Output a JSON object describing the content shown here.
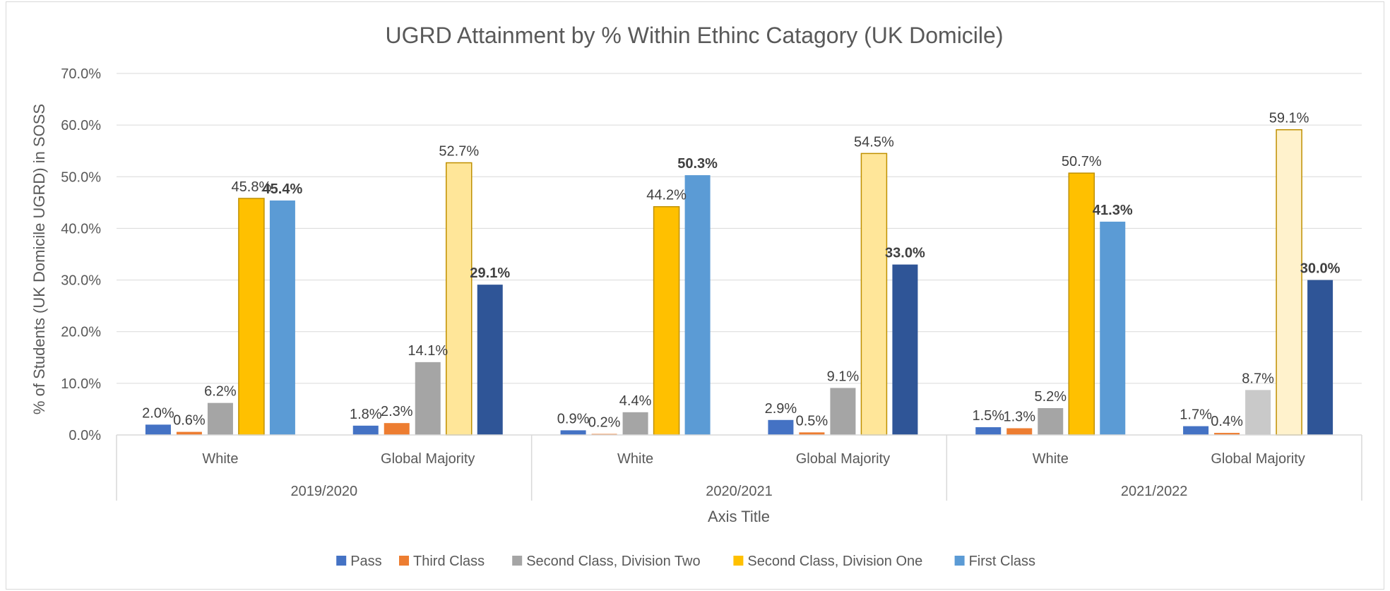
{
  "chart_data": {
    "type": "bar",
    "title": "UGRD Attainment by % Within Ethinc Catagory (UK Domicile)",
    "ylabel": "% of Students (UK Domicile UGRD) in SOSS",
    "xlabel": "Axis Title",
    "ylim": [
      0,
      70
    ],
    "yticks": [
      0,
      10,
      20,
      30,
      40,
      50,
      60,
      70
    ],
    "ytick_format": "0.0%",
    "grid": true,
    "legend_position": "bottom",
    "groups": [
      {
        "label": "2019/2020",
        "categories": [
          "White",
          "Global Majority"
        ]
      },
      {
        "label": "2020/2021",
        "categories": [
          "White",
          "Global Majority"
        ]
      },
      {
        "label": "2021/2022",
        "categories": [
          "White",
          "Global Majority"
        ]
      }
    ],
    "series": [
      {
        "name": "Pass",
        "color": "#4472C4",
        "values": [
          2.0,
          1.8,
          0.9,
          2.9,
          1.5,
          1.7
        ]
      },
      {
        "name": "Third Class",
        "color": "#ED7D31",
        "values": [
          0.6,
          2.3,
          0.2,
          0.5,
          1.3,
          0.4
        ]
      },
      {
        "name": "Second Class, Division Two",
        "color": "#A5A5A5",
        "values": [
          6.2,
          14.1,
          4.4,
          9.1,
          5.2,
          8.7
        ]
      },
      {
        "name": "Second Class, Division One",
        "color": "#FFC000",
        "values": [
          45.8,
          52.7,
          44.2,
          54.5,
          50.7,
          59.1
        ]
      },
      {
        "name": "First Class",
        "color": "#5B9BD5",
        "values": [
          45.4,
          29.1,
          50.3,
          33.0,
          41.3,
          30.0
        ]
      }
    ],
    "point_colors": {
      "Second Class, Division Two": [
        "#A5A5A5",
        "#A5A5A5",
        "#A5A5A5",
        "#A5A5A5",
        "#A5A5A5",
        "#C9C9C9"
      ],
      "Second Class, Division One": [
        "#FFC000",
        "#FFE699",
        "#FFC000",
        "#FFE699",
        "#FFC000",
        "#FFF2CC"
      ],
      "First Class": [
        "#5B9BD5",
        "#2F5597",
        "#5B9BD5",
        "#2F5597",
        "#5B9BD5",
        "#2F5597"
      ]
    },
    "bold_labels": {
      "First Class": [
        true,
        true,
        true,
        true,
        true,
        true
      ]
    }
  }
}
